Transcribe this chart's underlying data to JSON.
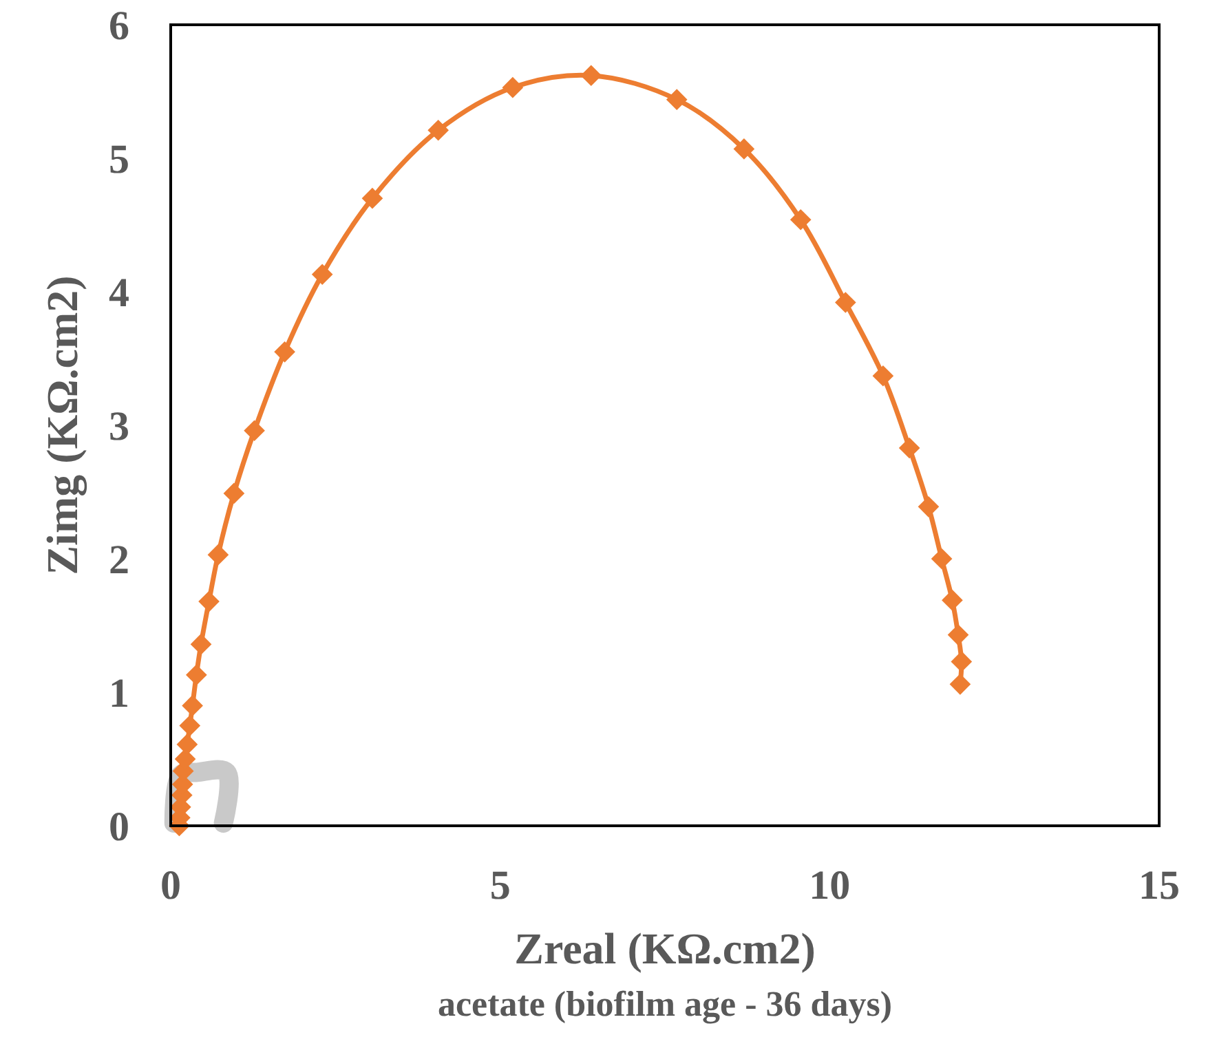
{
  "chart_data": {
    "type": "line",
    "xlabel": "Zreal (KΩ.cm2)",
    "ylabel": "Zimg (KΩ.cm2)",
    "title": "acetate (biofilm age - 36 days)",
    "xlim": [
      0,
      15
    ],
    "ylim": [
      0,
      6
    ],
    "xticks": [
      0,
      5,
      10,
      15
    ],
    "yticks": [
      0,
      1,
      2,
      3,
      4,
      5,
      6
    ],
    "grid": false,
    "series": [
      {
        "color": "#c9c9c9",
        "marker": "none",
        "x": [
          0.05,
          0.15,
          0.4,
          0.85,
          0.8
        ],
        "values": [
          0.02,
          0.38,
          0.4,
          0.4,
          0.02
        ]
      },
      {
        "color": "#ed7d31",
        "marker": "diamond",
        "x": [
          0.13,
          0.14,
          0.15,
          0.17,
          0.18,
          0.19,
          0.22,
          0.25,
          0.29,
          0.33,
          0.39,
          0.46,
          0.58,
          0.72,
          0.96,
          1.27,
          1.73,
          2.3,
          3.06,
          4.06,
          5.19,
          6.38,
          7.68,
          8.7,
          9.56,
          10.24,
          10.81,
          11.21,
          11.5,
          11.7,
          11.86,
          11.95,
          12.0,
          11.98
        ],
        "values": [
          0.0,
          0.06,
          0.14,
          0.23,
          0.31,
          0.41,
          0.5,
          0.61,
          0.75,
          0.9,
          1.13,
          1.36,
          1.68,
          2.03,
          2.49,
          2.96,
          3.55,
          4.13,
          4.7,
          5.21,
          5.53,
          5.62,
          5.44,
          5.07,
          4.54,
          3.92,
          3.37,
          2.83,
          2.39,
          2.0,
          1.69,
          1.43,
          1.23,
          1.06
        ]
      }
    ]
  }
}
